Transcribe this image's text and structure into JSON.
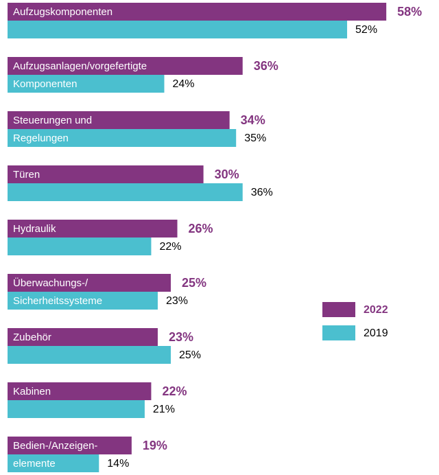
{
  "chart_data": {
    "type": "bar",
    "orientation": "horizontal",
    "categories": [
      [
        "Aufzugskomponenten"
      ],
      [
        "Aufzugsanlagen/vorgefertigte",
        "Komponenten"
      ],
      [
        "Steuerungen und",
        "Regelungen"
      ],
      [
        "Türen"
      ],
      [
        "Hydraulik"
      ],
      [
        "Überwachungs-/",
        "Sicherheitssysteme"
      ],
      [
        "Zubehör"
      ],
      [
        "Kabinen"
      ],
      [
        "Bedien-/Anzeigen-",
        "elemente"
      ]
    ],
    "series": [
      {
        "name": "2022",
        "color": "#833580",
        "values": [
          58,
          36,
          34,
          30,
          26,
          25,
          23,
          22,
          19
        ],
        "value_labels": [
          "58%",
          "36%",
          "34%",
          "30%",
          "26%",
          "25%",
          "23%",
          "22%",
          "19%"
        ]
      },
      {
        "name": "2019",
        "color": "#4bbfcf",
        "values": [
          52,
          24,
          35,
          36,
          22,
          23,
          25,
          21,
          14
        ],
        "value_labels": [
          "52%",
          "24%",
          "35%",
          "36%",
          "22%",
          "23%",
          "25%",
          "21%",
          "14%"
        ]
      }
    ],
    "legend": "right"
  }
}
